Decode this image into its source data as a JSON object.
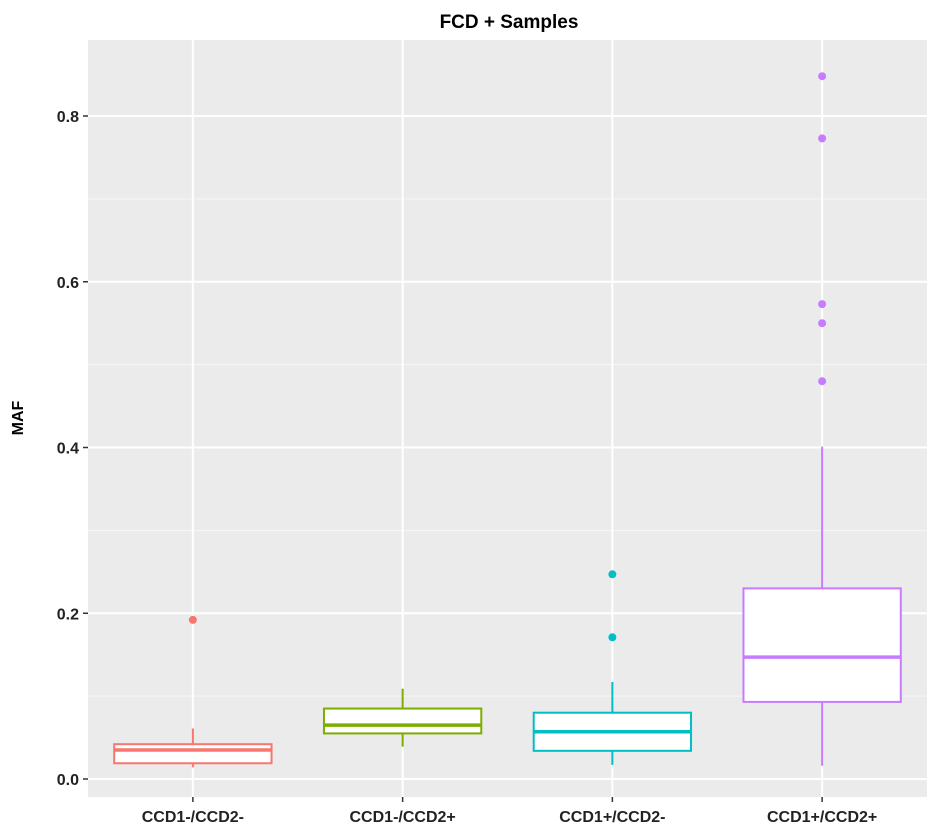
{
  "chart_data": {
    "type": "box",
    "title": "FCD + Samples",
    "xlabel": "",
    "ylabel": "MAF",
    "ylim": [
      -0.027,
      0.885
    ],
    "yticks": [
      0.0,
      0.2,
      0.4,
      0.6,
      0.8
    ],
    "ytick_labels": [
      "0.0",
      "0.2",
      "0.4",
      "0.6",
      "0.8"
    ],
    "grid": true,
    "legend": "none",
    "categories": [
      "CCD1-/CCD2-",
      "CCD1-/CCD2+",
      "CCD1+/CCD2-",
      "CCD1+/CCD2+"
    ],
    "boxes": [
      {
        "category": "CCD1-/CCD2-",
        "color": "#F8766D",
        "whisker_low": 0.014,
        "q1": 0.019,
        "median": 0.035,
        "q3": 0.042,
        "whisker_high": 0.061,
        "outliers": [
          0.192
        ]
      },
      {
        "category": "CCD1-/CCD2+",
        "color": "#7CAE00",
        "whisker_low": 0.039,
        "q1": 0.055,
        "median": 0.065,
        "q3": 0.085,
        "whisker_high": 0.109,
        "outliers": []
      },
      {
        "category": "CCD1+/CCD2-",
        "color": "#00BFC4",
        "whisker_low": 0.017,
        "q1": 0.034,
        "median": 0.057,
        "q3": 0.08,
        "whisker_high": 0.117,
        "outliers": [
          0.171,
          0.247
        ]
      },
      {
        "category": "CCD1+/CCD2+",
        "color": "#C77CFF",
        "whisker_low": 0.016,
        "q1": 0.093,
        "median": 0.147,
        "q3": 0.23,
        "whisker_high": 0.401,
        "outliers": [
          0.48,
          0.55,
          0.573,
          0.773,
          0.848
        ]
      }
    ]
  }
}
